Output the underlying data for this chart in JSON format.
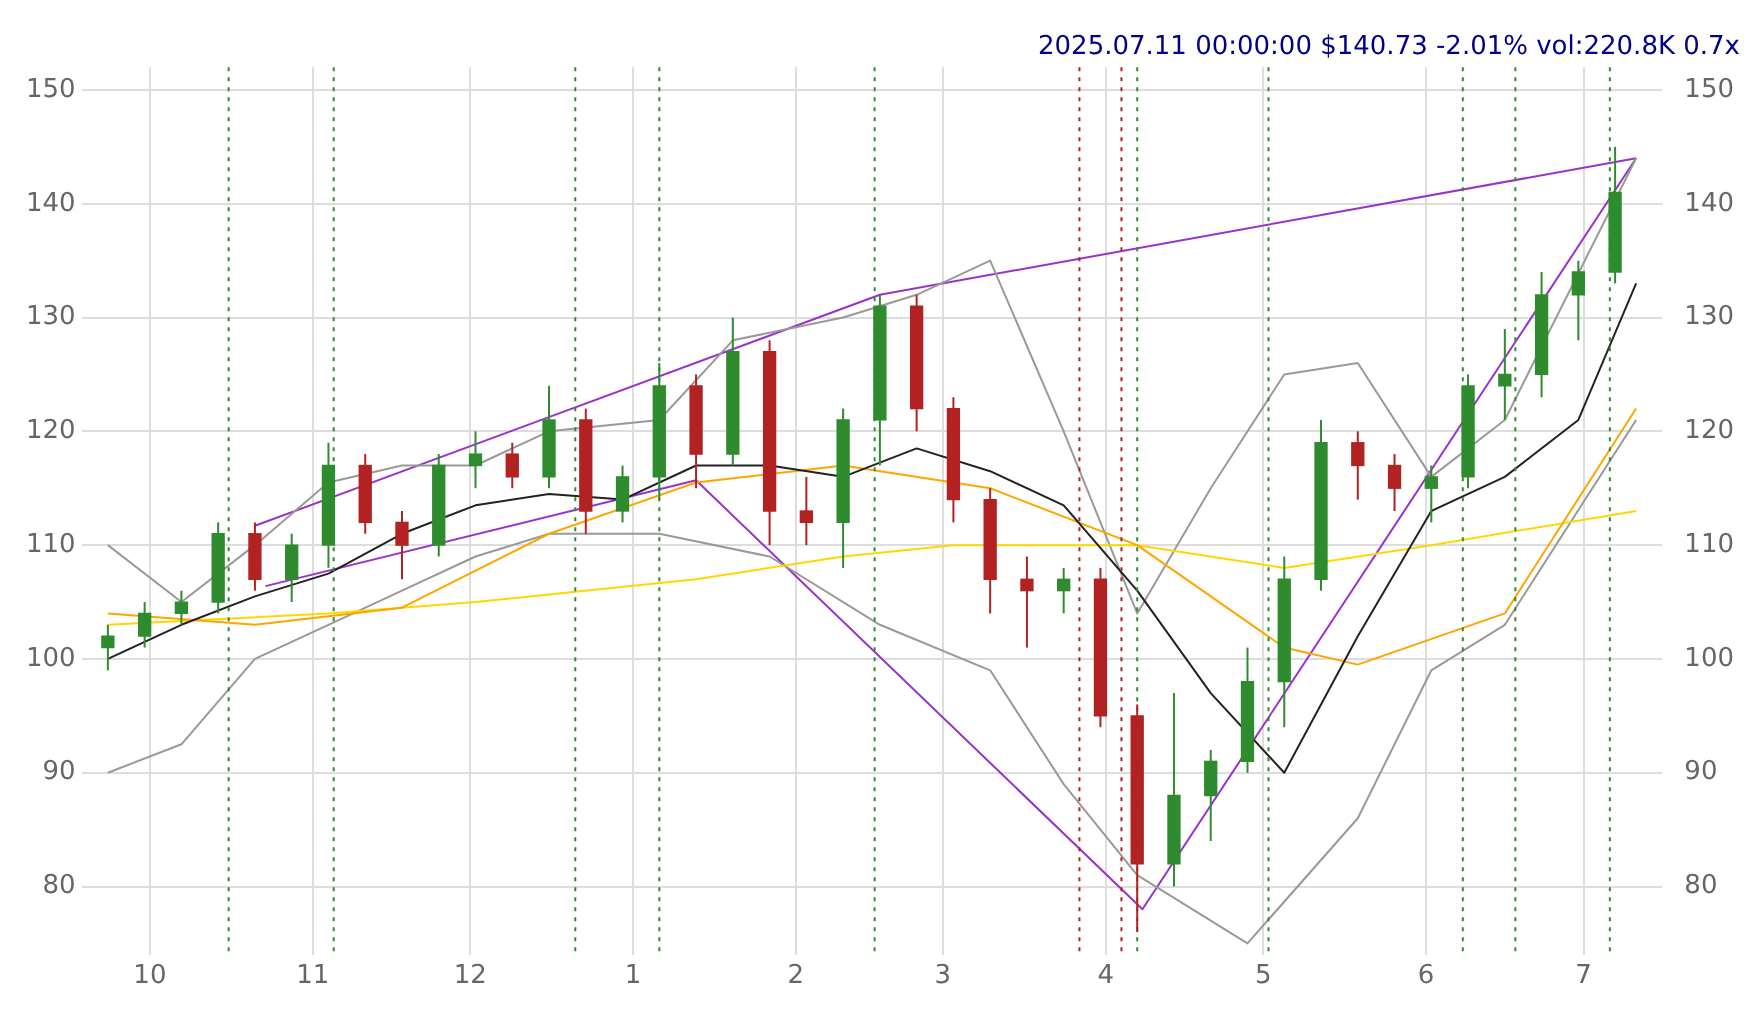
{
  "chart_data": {
    "type": "candlestick",
    "title": "2025.07.11 00:00:00 $140.73 -2.01% vol:220.8K 0.7x",
    "x": [
      "2024-09-23",
      "2024-09-30",
      "2024-10-07",
      "2024-10-14",
      "2024-10-21",
      "2024-10-28",
      "2024-11-04",
      "2024-11-11",
      "2024-11-18",
      "2024-11-25",
      "2024-12-02",
      "2024-12-09",
      "2024-12-16",
      "2024-12-23",
      "2024-12-30",
      "2025-01-06",
      "2025-01-13",
      "2025-01-20",
      "2025-01-27",
      "2025-02-03",
      "2025-02-10",
      "2025-02-17",
      "2025-02-24",
      "2025-03-03",
      "2025-03-10",
      "2025-03-17",
      "2025-03-24",
      "2025-03-31",
      "2025-04-07",
      "2025-04-14",
      "2025-04-21",
      "2025-04-28",
      "2025-05-05",
      "2025-05-12",
      "2025-05-19",
      "2025-05-26",
      "2025-06-02",
      "2025-06-09",
      "2025-06-16",
      "2025-06-23",
      "2025-06-30",
      "2025-07-07"
    ],
    "ohlc": [
      [
        101,
        103,
        99,
        102
      ],
      [
        102,
        105,
        101,
        104
      ],
      [
        104,
        106,
        103,
        105
      ],
      [
        105,
        112,
        104,
        111
      ],
      [
        111,
        112,
        106,
        107
      ],
      [
        107,
        111,
        105,
        110
      ],
      [
        110,
        119,
        108,
        117
      ],
      [
        117,
        118,
        111,
        112
      ],
      [
        112,
        113,
        107,
        110
      ],
      [
        110,
        118,
        109,
        117
      ],
      [
        117,
        120,
        115,
        118
      ],
      [
        118,
        119,
        115,
        116
      ],
      [
        116,
        124,
        115,
        121
      ],
      [
        121,
        122,
        111,
        113
      ],
      [
        113,
        117,
        112,
        116
      ],
      [
        116,
        126,
        114,
        124
      ],
      [
        124,
        125,
        115,
        118
      ],
      [
        118,
        130,
        117,
        127
      ],
      [
        127,
        128,
        110,
        113
      ],
      [
        113,
        116,
        110,
        112
      ],
      [
        112,
        122,
        108,
        121
      ],
      [
        121,
        132,
        117,
        131
      ],
      [
        131,
        132,
        120,
        122
      ],
      [
        122,
        123,
        112,
        114
      ],
      [
        114,
        115,
        104,
        107
      ],
      [
        107,
        109,
        101,
        106
      ],
      [
        106,
        108,
        104,
        107
      ],
      [
        107,
        108,
        94,
        95
      ],
      [
        95,
        96,
        76,
        82
      ],
      [
        82,
        97,
        80,
        88
      ],
      [
        88,
        92,
        84,
        91
      ],
      [
        91,
        101,
        90,
        98
      ],
      [
        98,
        109,
        94,
        107
      ],
      [
        107,
        121,
        106,
        119
      ],
      [
        119,
        120,
        114,
        117
      ],
      [
        117,
        118,
        113,
        115
      ],
      [
        115,
        117,
        112,
        116
      ],
      [
        116,
        125,
        115,
        124
      ],
      [
        124,
        129,
        121,
        125
      ],
      [
        125,
        134,
        123,
        132
      ],
      [
        132,
        135,
        128,
        134
      ],
      [
        134,
        145,
        133,
        141
      ]
    ],
    "colors": [
      "#2e8b2e",
      "#2e8b2e",
      "#2e8b2e",
      "#2e8b2e",
      "#b22222",
      "#2e8b2e",
      "#2e8b2e",
      "#b22222",
      "#b22222",
      "#2e8b2e",
      "#2e8b2e",
      "#b22222",
      "#2e8b2e",
      "#b22222",
      "#2e8b2e",
      "#2e8b2e",
      "#b22222",
      "#2e8b2e",
      "#b22222",
      "#b22222",
      "#2e8b2e",
      "#2e8b2e",
      "#b22222",
      "#b22222",
      "#b22222",
      "#b22222",
      "#2e8b2e",
      "#b22222",
      "#b22222",
      "#2e8b2e",
      "#2e8b2e",
      "#2e8b2e",
      "#2e8b2e",
      "#2e8b2e",
      "#b22222",
      "#b22222",
      "#2e8b2e",
      "#2e8b2e",
      "#2e8b2e",
      "#2e8b2e",
      "#2e8b2e",
      "#2e8b2e"
    ],
    "series": [
      {
        "type": "line",
        "color": "#222222",
        "x": [
          "2024-09-23",
          "2024-10-07",
          "2024-10-21",
          "2024-11-04",
          "2024-11-18",
          "2024-12-02",
          "2024-12-16",
          "2024-12-30",
          "2025-01-13",
          "2025-01-27",
          "2025-02-10",
          "2025-02-24",
          "2025-03-10",
          "2025-03-24",
          "2025-04-07",
          "2025-04-21",
          "2025-05-05",
          "2025-05-19",
          "2025-06-02",
          "2025-06-16",
          "2025-06-30",
          "2025-07-11"
        ],
        "values": [
          100,
          103,
          105.5,
          107.5,
          111,
          113.5,
          114.5,
          114,
          117,
          117,
          116,
          118.5,
          116.5,
          113.5,
          106,
          97,
          90,
          102,
          113,
          116,
          121,
          133
        ]
      },
      {
        "type": "line",
        "color": "#ffa500",
        "x": [
          "2024-09-23",
          "2024-10-21",
          "2024-11-18",
          "2024-12-16",
          "2025-01-13",
          "2025-02-10",
          "2025-03-10",
          "2025-04-07",
          "2025-05-05",
          "2025-05-19",
          "2025-06-16",
          "2025-07-11"
        ],
        "values": [
          104,
          103,
          104.5,
          111,
          115.5,
          117,
          115,
          110,
          101,
          99.5,
          104,
          122
        ]
      },
      {
        "type": "line",
        "color": "#ffd700",
        "x": [
          "2024-09-23",
          "2024-11-04",
          "2024-12-02",
          "2025-01-13",
          "2025-02-10",
          "2025-03-03",
          "2025-04-07",
          "2025-05-05",
          "2025-06-02",
          "2025-07-11"
        ],
        "values": [
          103,
          104,
          105,
          107,
          109,
          110,
          110,
          108,
          110,
          113
        ]
      },
      {
        "type": "line",
        "color": "#999999",
        "x": [
          "2024-09-23",
          "2024-10-07",
          "2024-10-21",
          "2024-11-04",
          "2024-11-18",
          "2024-12-02",
          "2024-12-16",
          "2025-01-06",
          "2025-01-20",
          "2025-02-10",
          "2025-02-24",
          "2025-03-10",
          "2025-03-24",
          "2025-04-07",
          "2025-04-21",
          "2025-05-05",
          "2025-05-19",
          "2025-06-02",
          "2025-06-16",
          "2025-07-11"
        ],
        "values": [
          110,
          105,
          110,
          115.5,
          117,
          117,
          120,
          121,
          128,
          130,
          132,
          135,
          120,
          104,
          115,
          125,
          126,
          116,
          121,
          144
        ]
      },
      {
        "type": "line",
        "color": "#999999",
        "x": [
          "2024-09-23",
          "2024-10-07",
          "2024-10-21",
          "2024-11-04",
          "2024-11-18",
          "2024-12-02",
          "2024-12-16",
          "2025-01-06",
          "2025-01-27",
          "2025-02-17",
          "2025-03-10",
          "2025-03-24",
          "2025-04-07",
          "2025-04-28",
          "2025-05-19",
          "2025-06-02",
          "2025-06-16",
          "2025-07-11"
        ],
        "values": [
          90,
          92.5,
          100,
          103,
          106,
          109,
          111,
          111,
          109,
          103,
          99,
          89,
          81,
          75,
          86,
          99,
          103,
          121
        ]
      },
      {
        "type": "line",
        "color": "#9932cc",
        "x": [
          "2024-10-21",
          "2025-02-17",
          "2025-07-11"
        ],
        "values": [
          111.7,
          132,
          144
        ]
      },
      {
        "type": "line",
        "color": "#9932cc",
        "x": [
          "2024-10-23",
          "2025-01-13",
          "2025-04-08",
          "2025-07-11"
        ],
        "values": [
          106.4,
          115.7,
          78,
          144
        ]
      }
    ],
    "ref_lines": [
      {
        "axis": "x",
        "value": "2024-10-16",
        "color": "#2e8b2e",
        "line_style": "dotted"
      },
      {
        "axis": "x",
        "value": "2024-11-05",
        "color": "#2e8b2e",
        "line_style": "dotted"
      },
      {
        "axis": "x",
        "value": "2024-12-21",
        "color": "#2e8b2e",
        "line_style": "dotted"
      },
      {
        "axis": "x",
        "value": "2025-01-06",
        "color": "#2e8b2e",
        "line_style": "dotted"
      },
      {
        "axis": "x",
        "value": "2025-02-16",
        "color": "#2e8b2e",
        "line_style": "dotted"
      },
      {
        "axis": "x",
        "value": "2025-03-27",
        "color": "#b22222",
        "line_style": "dotted"
      },
      {
        "axis": "x",
        "value": "2025-04-04",
        "color": "#b22222",
        "line_style": "dotted"
      },
      {
        "axis": "x",
        "value": "2025-04-07",
        "color": "#2e8b2e",
        "line_style": "dotted"
      },
      {
        "axis": "x",
        "value": "2025-05-02",
        "color": "#2e8b2e",
        "line_style": "dotted"
      },
      {
        "axis": "x",
        "value": "2025-06-08",
        "color": "#2e8b2e",
        "line_style": "dotted"
      },
      {
        "axis": "x",
        "value": "2025-06-18",
        "color": "#2e8b2e",
        "line_style": "dotted"
      },
      {
        "axis": "x",
        "value": "2025-07-06",
        "color": "#2e8b2e",
        "line_style": "dotted"
      }
    ],
    "xlim": [
      "2024-09-18",
      "2025-07-16"
    ],
    "xticks": [
      {
        "value": "2024-10-01",
        "label": "10"
      },
      {
        "value": "2024-11-01",
        "label": "11"
      },
      {
        "value": "2024-12-01",
        "label": "12"
      },
      {
        "value": "2025-01-01",
        "label": "1"
      },
      {
        "value": "2025-02-01",
        "label": "2"
      },
      {
        "value": "2025-03-01",
        "label": "3"
      },
      {
        "value": "2025-04-01",
        "label": "4"
      },
      {
        "value": "2025-05-01",
        "label": "5"
      },
      {
        "value": "2025-06-01",
        "label": "6"
      },
      {
        "value": "2025-07-01",
        "label": "7"
      }
    ],
    "ylim": [
      74,
      152
    ],
    "yticks": [
      80,
      90,
      100,
      110,
      120,
      130,
      140,
      150
    ],
    "y2lim": [
      74,
      152
    ],
    "y2ticks": [
      80,
      90,
      100,
      110,
      120,
      130,
      140,
      150
    ],
    "grid": true,
    "legend": false
  }
}
